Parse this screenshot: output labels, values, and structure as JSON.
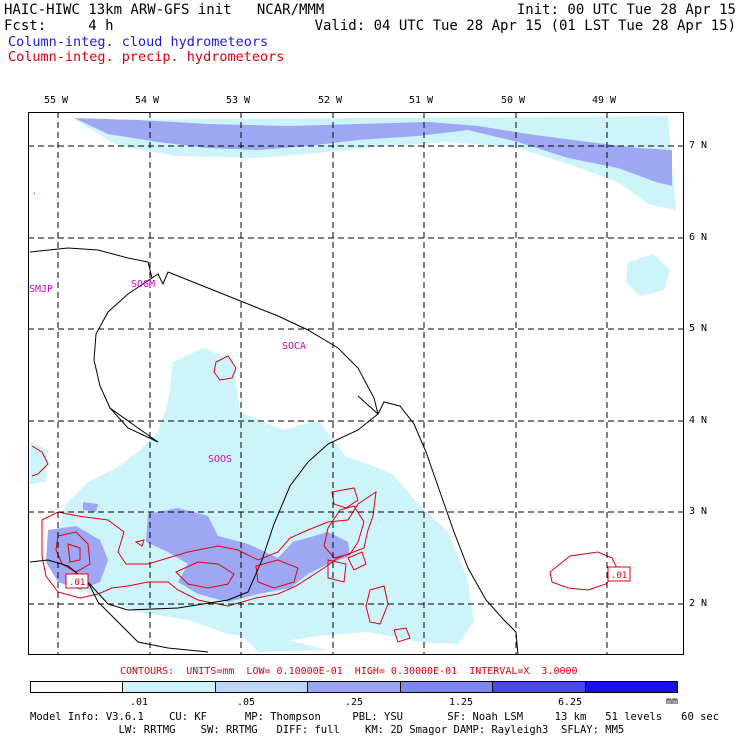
{
  "header": {
    "title_left": "HAIC-HIWC 13km ARW-GFS init   NCAR/MMM",
    "fcst_label": "Fcst:     4 h",
    "init": "Init: 00 UTC Tue 28 Apr 15",
    "valid": "Valid: 04 UTC Tue 28 Apr 15 (01 LST Tue 28 Apr 15)",
    "field_cloud": "Column-integ. cloud hydrometeors",
    "field_precip": "Column-integ. precip. hydrometeors"
  },
  "colors": {
    "cloud_light": "#cdf4fb",
    "cloud_mid": "#9da7f4",
    "precip_contour": "#e0000e",
    "coast": "#000000"
  },
  "map": {
    "lon_labels": [
      "55 W",
      "54 W",
      "53 W",
      "52 W",
      "51 W",
      "50 W",
      "49 W"
    ],
    "lat_labels": [
      "7 N",
      "6 N",
      "5 N",
      "4 N",
      "3 N",
      "2 N"
    ],
    "site_labels": [
      "SMJP",
      "SOGM",
      "SOCA",
      "SOOS"
    ],
    "contour_labels": [
      ".01",
      ".01"
    ]
  },
  "contours_line": "CONTOURS:  UNITS=mm  LOW= 0.10000E-01  HIGH= 0.30000E-01  INTERVAL=X  3.0000",
  "legend": {
    "colors": [
      "#ffffff",
      "#ccf4fb",
      "#bdd6f7",
      "#9ba5f3",
      "#7e86ef",
      "#4a48eb",
      "#1a10e6"
    ],
    "tick_labels": [
      ".01",
      ".05",
      ".25",
      "1.25",
      "6.25"
    ],
    "unit": "mm"
  },
  "footer": {
    "line1": "Model Info: V3.6.1    CU: KF      MP: Thompson     PBL: YSU       SF: Noah LSM     13 km   51 levels   60 sec",
    "line2": "              LW: RRTMG    SW: RRTMG   DIFF: full    KM: 2D Smagor DAMP: Rayleigh3  SFLAY: MM5"
  }
}
